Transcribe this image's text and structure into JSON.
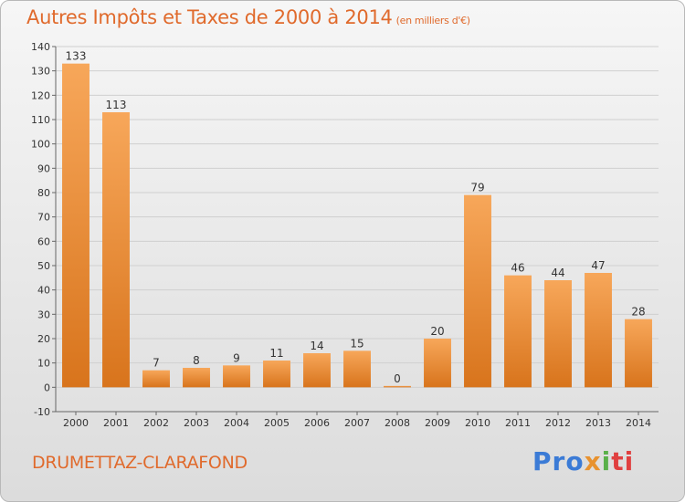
{
  "title": "Autres Impôts et Taxes de 2000 à 2014",
  "unit": "(en milliers d'€)",
  "commune": "DRUMETTAZ-CLARAFOND",
  "logo": {
    "p1": "Pro",
    "p2": "x",
    "p3": "i",
    "p4": "ti"
  },
  "colors": {
    "bar_light": "#f7a75a",
    "bar_dark": "#d8741c",
    "title": "#e06a2c",
    "grid": "#cfcfcf"
  },
  "chart_data": {
    "type": "bar",
    "categories": [
      "2000",
      "2001",
      "2002",
      "2003",
      "2004",
      "2005",
      "2006",
      "2007",
      "2008",
      "2009",
      "2010",
      "2011",
      "2012",
      "2013",
      "2014"
    ],
    "values": [
      133,
      113,
      7,
      8,
      9,
      11,
      14,
      15,
      0,
      20,
      79,
      46,
      44,
      47,
      28
    ],
    "value_labels": [
      "133",
      "113",
      "7",
      "8",
      "9",
      "11",
      "14",
      "15",
      "0",
      "20",
      "79",
      "46",
      "44",
      "47",
      "28"
    ],
    "ylim": [
      -10,
      140
    ],
    "yticks": [
      -10,
      0,
      10,
      20,
      30,
      40,
      50,
      60,
      70,
      80,
      90,
      100,
      110,
      120,
      130,
      140
    ],
    "ytick_labels": [
      "-10",
      "0",
      "10",
      "20",
      "30",
      "40",
      "50",
      "60",
      "70",
      "80",
      "90",
      "100",
      "110",
      "120",
      "130",
      "140"
    ],
    "grid": true,
    "xlabel": "",
    "ylabel": ""
  }
}
